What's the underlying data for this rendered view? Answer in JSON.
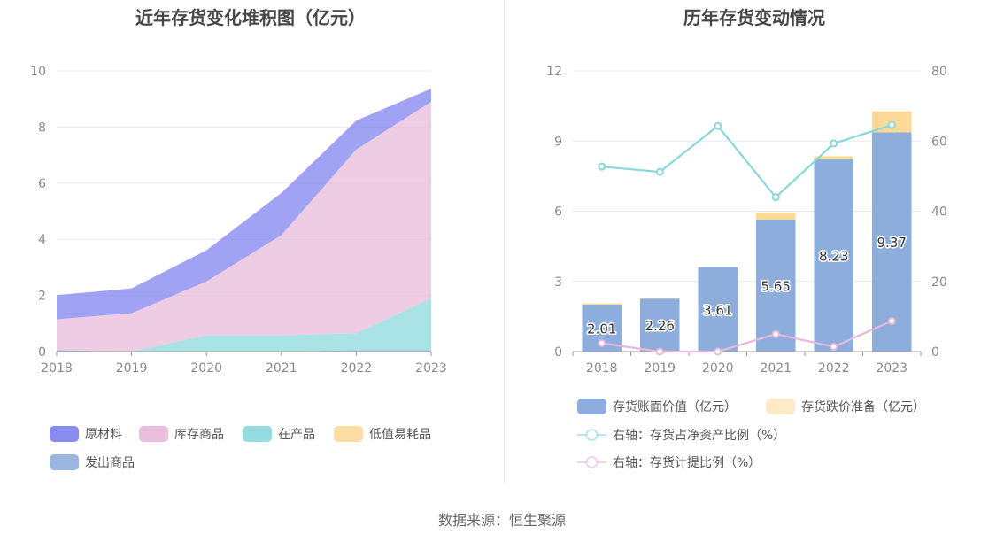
{
  "source": "数据来源：恒生聚源",
  "chart_data": [
    {
      "type": "area",
      "stacked": true,
      "title": "近年存货变化堆积图（亿元）",
      "categories": [
        "2018",
        "2019",
        "2020",
        "2021",
        "2022",
        "2023"
      ],
      "ylim": [
        0,
        10
      ],
      "yticks": [
        0,
        2,
        4,
        6,
        8,
        10
      ],
      "grid": true,
      "legend_position": "bottom",
      "series": [
        {
          "name": "发出商品",
          "color": "#8daedd",
          "values": [
            0.05,
            0.0,
            0.0,
            0.0,
            0.05,
            0.05
          ]
        },
        {
          "name": "在产品",
          "color": "#88d8db",
          "values": [
            0.0,
            0.0,
            0.58,
            0.58,
            0.6,
            1.85
          ]
        },
        {
          "name": "低值易耗品",
          "color": "#fdd998",
          "values": [
            0.0,
            0.0,
            0.0,
            0.0,
            0.0,
            0.0
          ]
        },
        {
          "name": "库存商品",
          "color": "#e8b8da",
          "values": [
            1.1,
            1.37,
            1.92,
            3.57,
            6.55,
            7.0
          ]
        },
        {
          "name": "原材料",
          "color": "#7b7ef0",
          "values": [
            0.86,
            0.88,
            1.11,
            1.5,
            1.03,
            0.47
          ]
        }
      ],
      "legend_order": [
        "原材料",
        "库存商品",
        "在产品",
        "低值易耗品",
        "发出商品"
      ]
    },
    {
      "type": "bar+line",
      "stacked": true,
      "title": "历年存货变动情况",
      "categories": [
        "2018",
        "2019",
        "2020",
        "2021",
        "2022",
        "2023"
      ],
      "ylim_left": [
        0,
        12
      ],
      "yticks_left": [
        0,
        3,
        6,
        9,
        12
      ],
      "ylim_right": [
        0,
        80
      ],
      "yticks_right": [
        0,
        20,
        40,
        60,
        80
      ],
      "grid": true,
      "legend_position": "bottom",
      "bar_series": [
        {
          "name": "存货账面价值（亿元）",
          "color": "#8daedd",
          "values": [
            2.01,
            2.26,
            3.61,
            5.65,
            8.23,
            9.37
          ],
          "labels": [
            "2.01",
            "2.26",
            "3.61",
            "5.65",
            "8.23",
            "9.37"
          ]
        },
        {
          "name": "存货跌价准备（亿元）",
          "color": "#fdd998",
          "values": [
            0.05,
            0.0,
            0.0,
            0.3,
            0.12,
            0.9
          ]
        }
      ],
      "line_series": [
        {
          "name": "右轴：存货占净资产比例（%）",
          "color": "#88d8db",
          "values": [
            52.7,
            51.2,
            64.3,
            44.0,
            59.3,
            64.6
          ]
        },
        {
          "name": "右轴：存货计提比例（%）",
          "color": "#e8b8da",
          "values": [
            2.4,
            0.0,
            0.0,
            5.0,
            1.4,
            8.7
          ]
        }
      ]
    }
  ]
}
